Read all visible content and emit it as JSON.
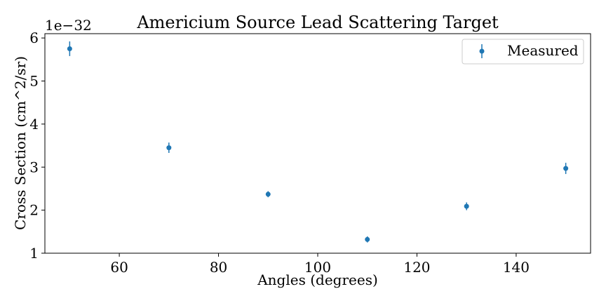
{
  "chart_data": {
    "type": "scatter",
    "title": "Americium Source Lead Scattering Target",
    "xlabel": "Angles (degrees)",
    "ylabel": "Cross Section (cm^2/sr)",
    "y_offset_label": "1e−32",
    "y_scale_factor": 1e-32,
    "xlim": [
      45,
      155
    ],
    "ylim": [
      1.0,
      6.1
    ],
    "x_ticks": [
      60,
      80,
      100,
      120,
      140
    ],
    "y_ticks": [
      1,
      2,
      3,
      4,
      5,
      6
    ],
    "grid": false,
    "legend_position": "top-right",
    "series": [
      {
        "name": "Measured",
        "color": "#1f77b4",
        "marker": "circle",
        "error_bars": true,
        "x": [
          50,
          70,
          90,
          110,
          130,
          150
        ],
        "y": [
          5.75,
          3.45,
          2.37,
          1.32,
          2.09,
          2.97
        ],
        "yerr": [
          0.17,
          0.12,
          0.07,
          0.07,
          0.09,
          0.13
        ]
      }
    ]
  }
}
